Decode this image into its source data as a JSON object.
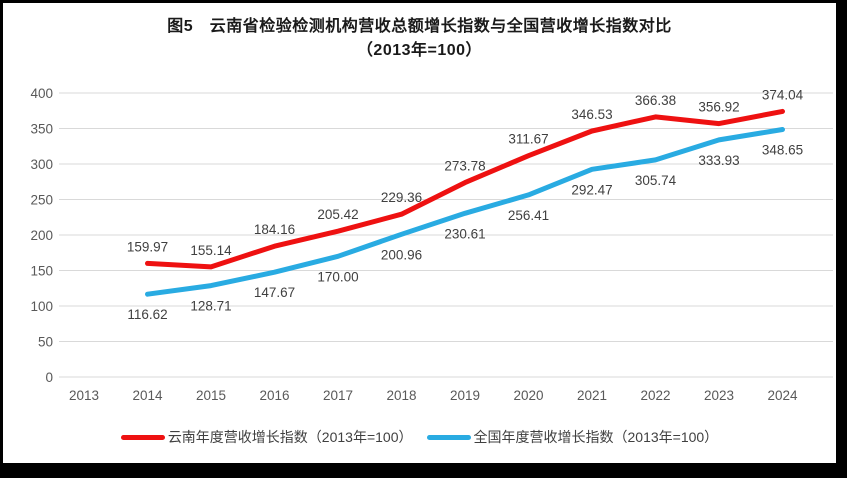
{
  "window": {
    "frame_color": "#000000",
    "panel_color": "#ffffff"
  },
  "chart_data": {
    "type": "line",
    "title_line1": "图5　云南省检验检测机构营收总额增长指数与全国营收增长指数对比",
    "title_line2": "（2013年=100）",
    "x_labels": [
      "2013",
      "2014",
      "2015",
      "2016",
      "2017",
      "2018",
      "2019",
      "2020",
      "2021",
      "2022",
      "2023",
      "2024"
    ],
    "y_ticks": [
      0,
      50,
      100,
      150,
      200,
      250,
      300,
      350,
      400
    ],
    "ylim": [
      0,
      400
    ],
    "grid": true,
    "legend_position": "bottom",
    "colors": {
      "gridline": "#d9d9d9",
      "axis_text": "#595959",
      "data_label_text": "#404040"
    },
    "series": [
      {
        "name": "云南年度营收增长指数（2013年=100）",
        "color": "#ee1111",
        "key": "yunnan",
        "label_position": "above",
        "x": [
          2014,
          2015,
          2016,
          2017,
          2018,
          2019,
          2020,
          2021,
          2022,
          2023,
          2024
        ],
        "values": [
          159.97,
          155.14,
          184.16,
          205.42,
          229.36,
          273.78,
          311.67,
          346.53,
          366.38,
          356.92,
          374.04
        ],
        "labels": [
          "159.97",
          "155.14",
          "184.16",
          "205.42",
          "229.36",
          "273.78",
          "311.67",
          "346.53",
          "366.38",
          "356.92",
          "374.04"
        ]
      },
      {
        "name": "全国年度营收增长指数（2013年=100）",
        "color": "#29abe2",
        "key": "national",
        "label_position": "below",
        "x": [
          2014,
          2015,
          2016,
          2017,
          2018,
          2019,
          2020,
          2021,
          2022,
          2023,
          2024
        ],
        "values": [
          116.62,
          128.71,
          147.67,
          170.0,
          200.96,
          230.61,
          256.41,
          292.47,
          305.74,
          333.93,
          348.65
        ],
        "labels": [
          "116.62",
          "128.71",
          "147.67",
          "170.00",
          "200.96",
          "230.61",
          "256.41",
          "292.47",
          "305.74",
          "333.93",
          "348.65"
        ]
      }
    ]
  }
}
